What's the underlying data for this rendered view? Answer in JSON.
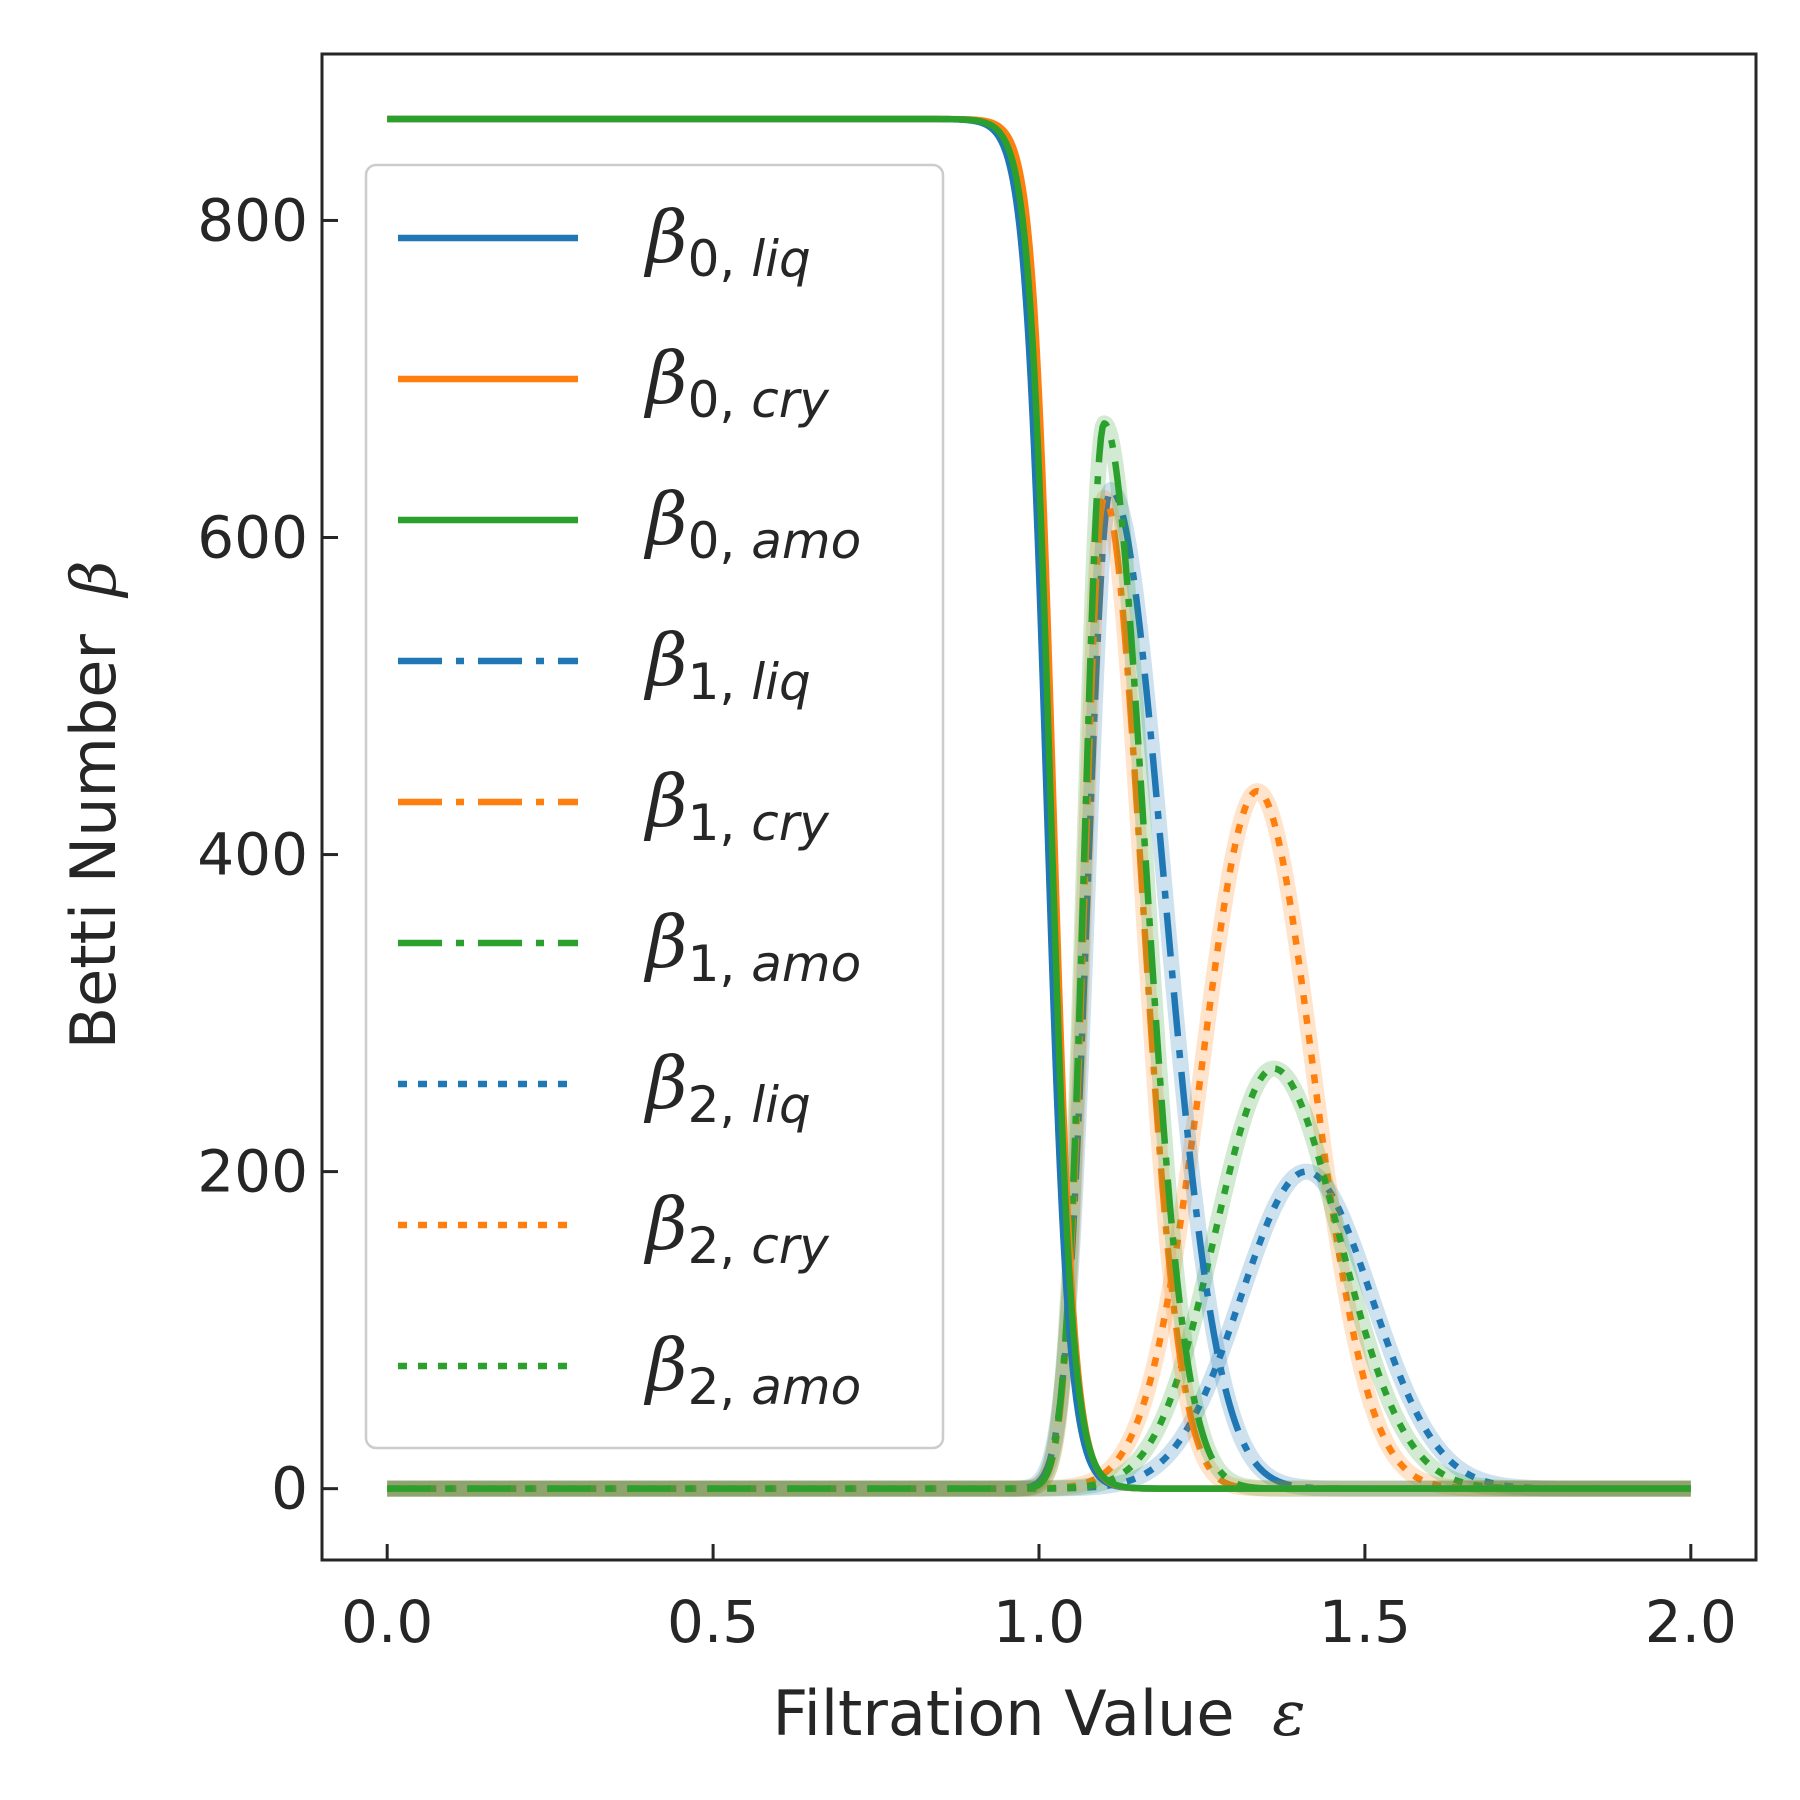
{
  "chart_data": {
    "type": "line",
    "xlabel": "Filtration Value",
    "xlabel_symbol": "ε",
    "ylabel": "Betti Number",
    "ylabel_symbol": "β",
    "xlim": [
      -0.1,
      2.1
    ],
    "ylim": [
      -45,
      905
    ],
    "x_ticks": [
      0.0,
      0.5,
      1.0,
      1.5,
      2.0
    ],
    "x_tick_labels": [
      "0.0",
      "0.5",
      "1.0",
      "1.5",
      "2.0"
    ],
    "y_ticks": [
      0,
      200,
      400,
      600,
      800
    ],
    "y_tick_labels": [
      "0",
      "200",
      "400",
      "600",
      "800"
    ],
    "grid": false,
    "legend_position": "upper-left",
    "colors": {
      "liq": "#1f77b4",
      "cry": "#ff7f0e",
      "amo": "#2ca02c"
    },
    "series": [
      {
        "name": "β0,liq",
        "symbol": "β",
        "sub_num": "0",
        "sub_phase": "liq",
        "color": "#1f77b4",
        "style": "solid",
        "model": "sigmoid",
        "params": {
          "level": 864,
          "center": 1.012,
          "width": 0.017
        }
      },
      {
        "name": "β0,cry",
        "symbol": "β",
        "sub_num": "0",
        "sub_phase": "cry",
        "color": "#ff7f0e",
        "style": "solid",
        "model": "sigmoid",
        "params": {
          "level": 864,
          "center": 1.022,
          "width": 0.016
        }
      },
      {
        "name": "β0,amo",
        "symbol": "β",
        "sub_num": "0",
        "sub_phase": "amo",
        "color": "#2ca02c",
        "style": "solid",
        "model": "sigmoid",
        "params": {
          "level": 864,
          "center": 1.018,
          "width": 0.017
        }
      },
      {
        "name": "β1,liq",
        "symbol": "β",
        "sub_num": "1",
        "sub_phase": "liq",
        "color": "#1f77b4",
        "style": "dashdot",
        "model": "peak",
        "params": {
          "height": 630,
          "center": 1.11,
          "sigma_left": 0.035,
          "sigma_right": 0.082
        }
      },
      {
        "name": "β1,cry",
        "symbol": "β",
        "sub_num": "1",
        "sub_phase": "cry",
        "color": "#ff7f0e",
        "style": "dashdot",
        "model": "peak",
        "params": {
          "height": 625,
          "center": 1.1,
          "sigma_left": 0.03,
          "sigma_right": 0.058
        }
      },
      {
        "name": "β1,amo",
        "symbol": "β",
        "sub_num": "1",
        "sub_phase": "amo",
        "color": "#2ca02c",
        "style": "dashdot",
        "model": "peak",
        "params": {
          "height": 672,
          "center": 1.1,
          "sigma_left": 0.03,
          "sigma_right": 0.062
        }
      },
      {
        "name": "β2,liq",
        "symbol": "β",
        "sub_num": "2",
        "sub_phase": "liq",
        "color": "#1f77b4",
        "style": "dotted",
        "model": "peak",
        "params": {
          "height": 200,
          "center": 1.41,
          "sigma_left": 0.1,
          "sigma_right": 0.1
        }
      },
      {
        "name": "β2,cry",
        "symbol": "β",
        "sub_num": "2",
        "sub_phase": "cry",
        "color": "#ff7f0e",
        "style": "dotted",
        "model": "peak",
        "params": {
          "height": 440,
          "center": 1.335,
          "sigma_left": 0.085,
          "sigma_right": 0.085
        }
      },
      {
        "name": "β2,amo",
        "symbol": "β",
        "sub_num": "2",
        "sub_phase": "amo",
        "color": "#2ca02c",
        "style": "dotted",
        "model": "peak",
        "params": {
          "height": 265,
          "center": 1.36,
          "sigma_left": 0.09,
          "sigma_right": 0.1
        }
      }
    ]
  }
}
